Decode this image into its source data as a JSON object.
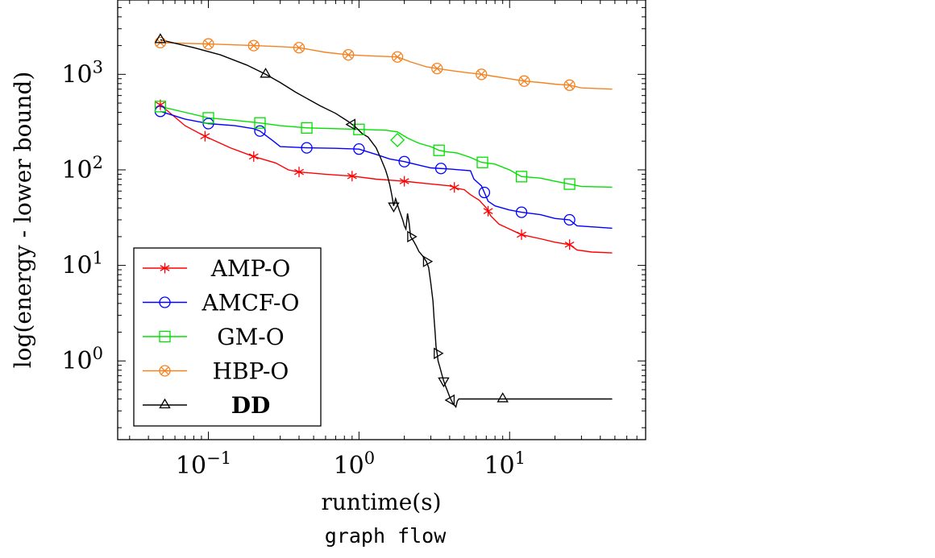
{
  "chart_data": {
    "type": "line",
    "title": "",
    "caption": "graph flow",
    "xlabel": "runtime(s)",
    "ylabel": "log(energy - lower bound)",
    "xscale": "log",
    "yscale": "log",
    "xlim": [
      0.025,
      80
    ],
    "ylim": [
      0.15,
      6000
    ],
    "x_ticks": [
      {
        "value": 0.1,
        "base": "10",
        "exp": "−1"
      },
      {
        "value": 1,
        "base": "10",
        "exp": "0"
      },
      {
        "value": 10,
        "base": "10",
        "exp": "1"
      }
    ],
    "y_ticks": [
      {
        "value": 1,
        "base": "10",
        "exp": "0"
      },
      {
        "value": 10,
        "base": "10",
        "exp": "1"
      },
      {
        "value": 100,
        "base": "10",
        "exp": "2"
      },
      {
        "value": 1000,
        "base": "10",
        "exp": "3"
      }
    ],
    "grid": false,
    "legend_position": "bottom-left",
    "series": [
      {
        "name": "AMP-O",
        "color": "#ff0000",
        "marker": "star",
        "bold": false,
        "points": [
          [
            0.048,
            480
          ],
          [
            0.07,
            290
          ],
          [
            0.095,
            225
          ],
          [
            0.14,
            170
          ],
          [
            0.2,
            138
          ],
          [
            0.28,
            118
          ],
          [
            0.34,
            100
          ],
          [
            0.4,
            95
          ],
          [
            0.6,
            90
          ],
          [
            0.9,
            86
          ],
          [
            1.3,
            80
          ],
          [
            2.0,
            76
          ],
          [
            2.8,
            72
          ],
          [
            4.0,
            68
          ],
          [
            4.5,
            64
          ],
          [
            5.0,
            62
          ],
          [
            5.5,
            55
          ],
          [
            6.3,
            48
          ],
          [
            7.0,
            40
          ],
          [
            7.5,
            33
          ],
          [
            8.5,
            27
          ],
          [
            10.0,
            24
          ],
          [
            12.0,
            21
          ],
          [
            16.0,
            19
          ],
          [
            20.0,
            17.5
          ],
          [
            25.0,
            16.5
          ],
          [
            28.0,
            14.5
          ],
          [
            35.0,
            13.8
          ],
          [
            48.0,
            13.5
          ]
        ],
        "marker_x": [
          0.048,
          0.095,
          0.2,
          0.4,
          0.9,
          2.0,
          4.3,
          7.2,
          12.0,
          25.0
        ]
      },
      {
        "name": "AMCF-O",
        "color": "#0000ff",
        "marker": "circle",
        "bold": false,
        "points": [
          [
            0.048,
            410
          ],
          [
            0.07,
            340
          ],
          [
            0.1,
            305
          ],
          [
            0.15,
            290
          ],
          [
            0.2,
            270
          ],
          [
            0.22,
            255
          ],
          [
            0.27,
            200
          ],
          [
            0.3,
            175
          ],
          [
            0.45,
            170
          ],
          [
            0.7,
            168
          ],
          [
            1.0,
            165
          ],
          [
            1.3,
            145
          ],
          [
            1.6,
            130
          ],
          [
            2.0,
            122
          ],
          [
            2.5,
            112
          ],
          [
            3.0,
            105
          ],
          [
            4.0,
            102
          ],
          [
            5.5,
            98
          ],
          [
            5.8,
            80
          ],
          [
            6.5,
            68
          ],
          [
            6.8,
            58
          ],
          [
            7.2,
            47
          ],
          [
            8.0,
            42
          ],
          [
            10.0,
            38
          ],
          [
            12.0,
            36
          ],
          [
            16.0,
            34
          ],
          [
            20.0,
            31
          ],
          [
            25.0,
            30
          ],
          [
            28.0,
            26
          ],
          [
            48.0,
            24.5
          ]
        ],
        "marker_x": [
          0.048,
          0.1,
          0.22,
          0.45,
          1.0,
          2.0,
          3.5,
          6.8,
          12.0,
          25.0
        ]
      },
      {
        "name": "GM-O",
        "color": "#00e000",
        "marker": "square",
        "bold": false,
        "points": [
          [
            0.048,
            460
          ],
          [
            0.07,
            400
          ],
          [
            0.1,
            350
          ],
          [
            0.15,
            330
          ],
          [
            0.22,
            310
          ],
          [
            0.3,
            290
          ],
          [
            0.45,
            275
          ],
          [
            0.7,
            270
          ],
          [
            1.0,
            265
          ],
          [
            1.5,
            260
          ],
          [
            1.8,
            250
          ],
          [
            2.1,
            215
          ],
          [
            2.5,
            190
          ],
          [
            3.0,
            175
          ],
          [
            3.4,
            160
          ],
          [
            3.8,
            155
          ],
          [
            4.5,
            150
          ],
          [
            5.5,
            135
          ],
          [
            6.5,
            120
          ],
          [
            8.0,
            115
          ],
          [
            10.0,
            100
          ],
          [
            12.0,
            85
          ],
          [
            16.0,
            82
          ],
          [
            20.0,
            76
          ],
          [
            25.0,
            71
          ],
          [
            30.0,
            67
          ],
          [
            48.0,
            66
          ]
        ],
        "marker_x": [
          0.048,
          0.1,
          0.22,
          0.45,
          1.0,
          3.4,
          6.6,
          12.0,
          25.0
        ],
        "extra_markers": [
          {
            "x": 1.8,
            "y": 205,
            "shape": "diamond"
          }
        ]
      },
      {
        "name": "HBP-O",
        "color": "#f58220",
        "marker": "circle-x",
        "bold": false,
        "points": [
          [
            0.048,
            2150
          ],
          [
            0.1,
            2080
          ],
          [
            0.2,
            2000
          ],
          [
            0.3,
            1950
          ],
          [
            0.4,
            1900
          ],
          [
            0.6,
            1700
          ],
          [
            0.85,
            1600
          ],
          [
            1.2,
            1560
          ],
          [
            1.8,
            1520
          ],
          [
            2.2,
            1350
          ],
          [
            2.8,
            1200
          ],
          [
            3.3,
            1150
          ],
          [
            4.0,
            1100
          ],
          [
            5.0,
            1050
          ],
          [
            6.5,
            1000
          ],
          [
            8.0,
            950
          ],
          [
            10.0,
            900
          ],
          [
            12.5,
            850
          ],
          [
            16.0,
            820
          ],
          [
            20.0,
            790
          ],
          [
            25.0,
            770
          ],
          [
            30.0,
            720
          ],
          [
            48.0,
            700
          ]
        ],
        "marker_x": [
          0.048,
          0.1,
          0.2,
          0.4,
          0.85,
          1.8,
          3.3,
          6.5,
          12.5,
          25.0
        ]
      },
      {
        "name": "DD",
        "color": "#000000",
        "marker": "triangle",
        "bold": true,
        "points": [
          [
            0.048,
            2300
          ],
          [
            0.08,
            1900
          ],
          [
            0.12,
            1600
          ],
          [
            0.18,
            1250
          ],
          [
            0.24,
            1000
          ],
          [
            0.3,
            820
          ],
          [
            0.38,
            650
          ],
          [
            0.45,
            560
          ],
          [
            0.55,
            470
          ],
          [
            0.7,
            390
          ],
          [
            0.85,
            320
          ],
          [
            0.95,
            280
          ],
          [
            1.05,
            240
          ],
          [
            1.15,
            220
          ],
          [
            1.3,
            170
          ],
          [
            1.4,
            130
          ],
          [
            1.5,
            100
          ],
          [
            1.55,
            85
          ],
          [
            1.6,
            70
          ],
          [
            1.65,
            55
          ],
          [
            1.7,
            42
          ],
          [
            1.75,
            50
          ],
          [
            1.85,
            38
          ],
          [
            1.95,
            30
          ],
          [
            2.0,
            26
          ],
          [
            2.05,
            24
          ],
          [
            2.1,
            35
          ],
          [
            2.15,
            28
          ],
          [
            2.2,
            20
          ],
          [
            2.3,
            18
          ],
          [
            2.4,
            16
          ],
          [
            2.5,
            14
          ],
          [
            2.65,
            12.5
          ],
          [
            2.8,
            11
          ],
          [
            2.9,
            9.5
          ],
          [
            3.0,
            6.5
          ],
          [
            3.1,
            4.2
          ],
          [
            3.15,
            2.8
          ],
          [
            3.2,
            2.0
          ],
          [
            3.25,
            1.4
          ],
          [
            3.3,
            1.2
          ],
          [
            3.35,
            1.0
          ],
          [
            3.45,
            0.85
          ],
          [
            3.55,
            0.72
          ],
          [
            3.65,
            0.62
          ],
          [
            3.75,
            0.55
          ],
          [
            3.9,
            0.47
          ],
          [
            4.0,
            0.42
          ],
          [
            4.2,
            0.36
          ],
          [
            4.4,
            0.33
          ],
          [
            4.5,
            0.38
          ],
          [
            4.6,
            0.4
          ],
          [
            48.0,
            0.4
          ]
        ],
        "marker_x": [
          0.048,
          0.24,
          0.9,
          1.7,
          2.2,
          2.8,
          3.3,
          3.65,
          4.1,
          9.0
        ],
        "marker_dirs": [
          "up",
          "up",
          "left",
          "down",
          "right",
          "right",
          "right",
          "down",
          "left",
          "up"
        ]
      }
    ]
  }
}
